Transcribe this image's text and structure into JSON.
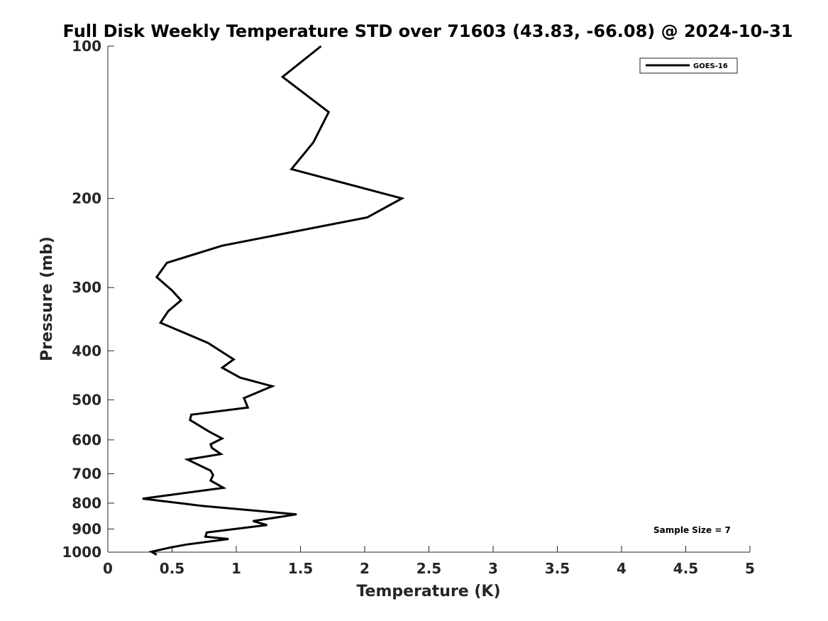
{
  "chart_data": {
    "type": "line",
    "title": "Full Disk Weekly Temperature STD over 71603 (43.83, -66.08) @ 2024-10-31",
    "xlabel": "Temperature (K)",
    "ylabel": "Pressure (mb)",
    "xlim": [
      0,
      5
    ],
    "ylim": [
      1000,
      100
    ],
    "yscale": "log",
    "grid": false,
    "legend_position": "top-right",
    "xticks": [
      "0",
      "0.5",
      "1",
      "1.5",
      "2",
      "2.5",
      "3",
      "3.5",
      "4",
      "4.5",
      "5"
    ],
    "yticks": [
      "100",
      "200",
      "300",
      "400",
      "500",
      "600",
      "700",
      "800",
      "900",
      "1000"
    ],
    "annotation": "Sample Size = 7",
    "series": [
      {
        "name": "GOES-16",
        "color": "#000000",
        "x": [
          1.66,
          1.36,
          1.72,
          1.6,
          1.43,
          2.29,
          2.02,
          0.89,
          0.46,
          0.38,
          0.5,
          0.57,
          0.47,
          0.41,
          0.78,
          0.98,
          0.89,
          1.03,
          1.28,
          1.06,
          1.09,
          0.65,
          0.64,
          0.79,
          0.89,
          0.8,
          0.81,
          0.88,
          0.62,
          0.8,
          0.82,
          0.8,
          0.9,
          0.27,
          0.73,
          1.47,
          1.13,
          1.24,
          0.77,
          0.76,
          0.94,
          0.61,
          0.48,
          0.34,
          0.38
        ],
        "y": [
          100,
          115,
          135,
          155,
          175,
          200,
          218,
          248,
          268,
          286,
          304,
          318,
          334,
          352,
          386,
          416,
          432,
          452,
          470,
          496,
          518,
          535,
          548,
          578,
          596,
          612,
          622,
          640,
          656,
          690,
          704,
          722,
          746,
          784,
          810,
          842,
          868,
          884,
          914,
          932,
          942,
          966,
          980,
          998,
          1012
        ]
      }
    ]
  }
}
